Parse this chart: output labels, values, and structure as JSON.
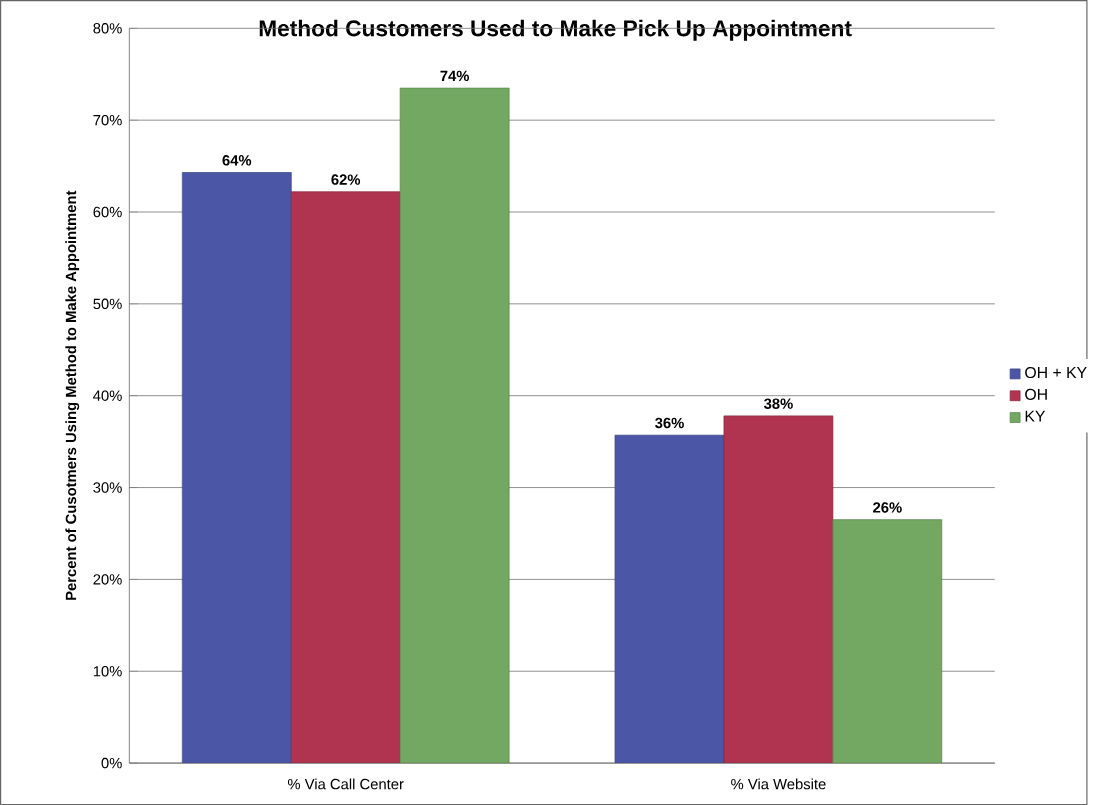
{
  "chart_data": {
    "type": "bar",
    "title": "Method Customers Used to Make Pick Up Appointment",
    "ylabel": "Percent of Cusotmers Using Method to Make Appointment",
    "categories": [
      "% Via Call Center",
      "% Via Website"
    ],
    "series": [
      {
        "name": "OH + KY",
        "color": "#4b57a6",
        "values": [
          64.3,
          35.7
        ],
        "value_labels": [
          "64%",
          "36%"
        ]
      },
      {
        "name": "OH",
        "color": "#b0344f",
        "values": [
          62.2,
          37.8
        ],
        "value_labels": [
          "62%",
          "38%"
        ]
      },
      {
        "name": "KY",
        "color": "#72a862",
        "values": [
          73.5,
          26.5
        ],
        "value_labels": [
          "74%",
          "26%"
        ]
      }
    ],
    "ylim": [
      0,
      80
    ],
    "yticks": [
      {
        "value": 0,
        "label": "0%"
      },
      {
        "value": 10,
        "label": "10%"
      },
      {
        "value": 20,
        "label": "20%"
      },
      {
        "value": 30,
        "label": "30%"
      },
      {
        "value": 40,
        "label": "40%"
      },
      {
        "value": 50,
        "label": "50%"
      },
      {
        "value": 60,
        "label": "60%"
      },
      {
        "value": 70,
        "label": "70%"
      },
      {
        "value": 80,
        "label": "80%"
      }
    ],
    "grid": "y",
    "legend": "right"
  }
}
